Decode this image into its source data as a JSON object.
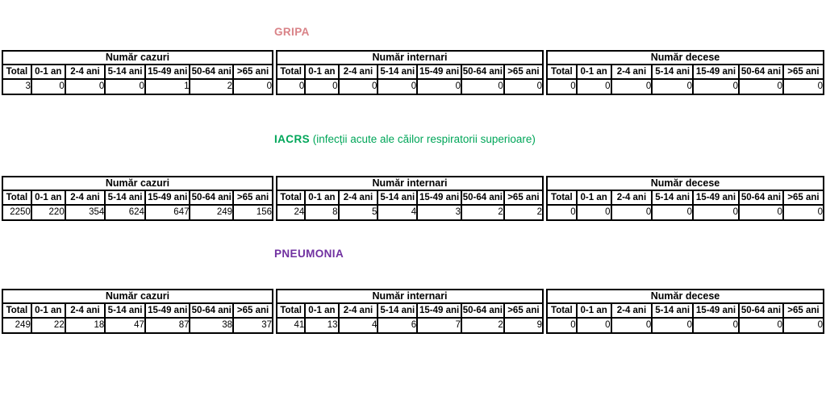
{
  "columns": [
    "Total",
    "0-1 an",
    "2-4 ani",
    "5-14 ani",
    "15-49 ani",
    "50-64 ani",
    ">65 ani"
  ],
  "sections": [
    {
      "id": "gripa",
      "title": "GRIPA",
      "title_suffix": "",
      "title_color": "#d98287",
      "groups": [
        {
          "key": "cazuri",
          "header": "Număr cazuri",
          "values": [
            "3",
            "0",
            "0",
            "0",
            "1",
            "2",
            "0"
          ]
        },
        {
          "key": "internari",
          "header": "Număr internari",
          "values": [
            "0",
            "0",
            "0",
            "0",
            "0",
            "0",
            "0"
          ]
        },
        {
          "key": "decese",
          "header": "Număr decese",
          "values": [
            "0",
            "0",
            "0",
            "0",
            "0",
            "0",
            "0"
          ]
        }
      ]
    },
    {
      "id": "iacrs",
      "title": "IACRS",
      "title_suffix": " (infecții acute ale căilor respiratorii superioare)",
      "title_color": "#00a659",
      "groups": [
        {
          "key": "cazuri",
          "header": "Număr cazuri",
          "values": [
            "2250",
            "220",
            "354",
            "624",
            "647",
            "249",
            "156"
          ]
        },
        {
          "key": "internari",
          "header": "Număr internari",
          "values": [
            "24",
            "8",
            "5",
            "4",
            "3",
            "2",
            "2"
          ]
        },
        {
          "key": "decese",
          "header": "Număr decese",
          "values": [
            "0",
            "0",
            "0",
            "0",
            "0",
            "0",
            "0"
          ]
        }
      ]
    },
    {
      "id": "pneumonia",
      "title": "PNEUMONIA",
      "title_suffix": "",
      "title_color": "#7030a0",
      "groups": [
        {
          "key": "cazuri",
          "header": "Număr cazuri",
          "values": [
            "249",
            "22",
            "18",
            "47",
            "87",
            "38",
            "37"
          ]
        },
        {
          "key": "internari",
          "header": "Număr internari",
          "values": [
            "41",
            "13",
            "4",
            "6",
            "7",
            "2",
            "9"
          ]
        },
        {
          "key": "decese",
          "header": "Număr decese",
          "values": [
            "0",
            "0",
            "0",
            "0",
            "0",
            "0",
            "0"
          ]
        }
      ]
    }
  ]
}
